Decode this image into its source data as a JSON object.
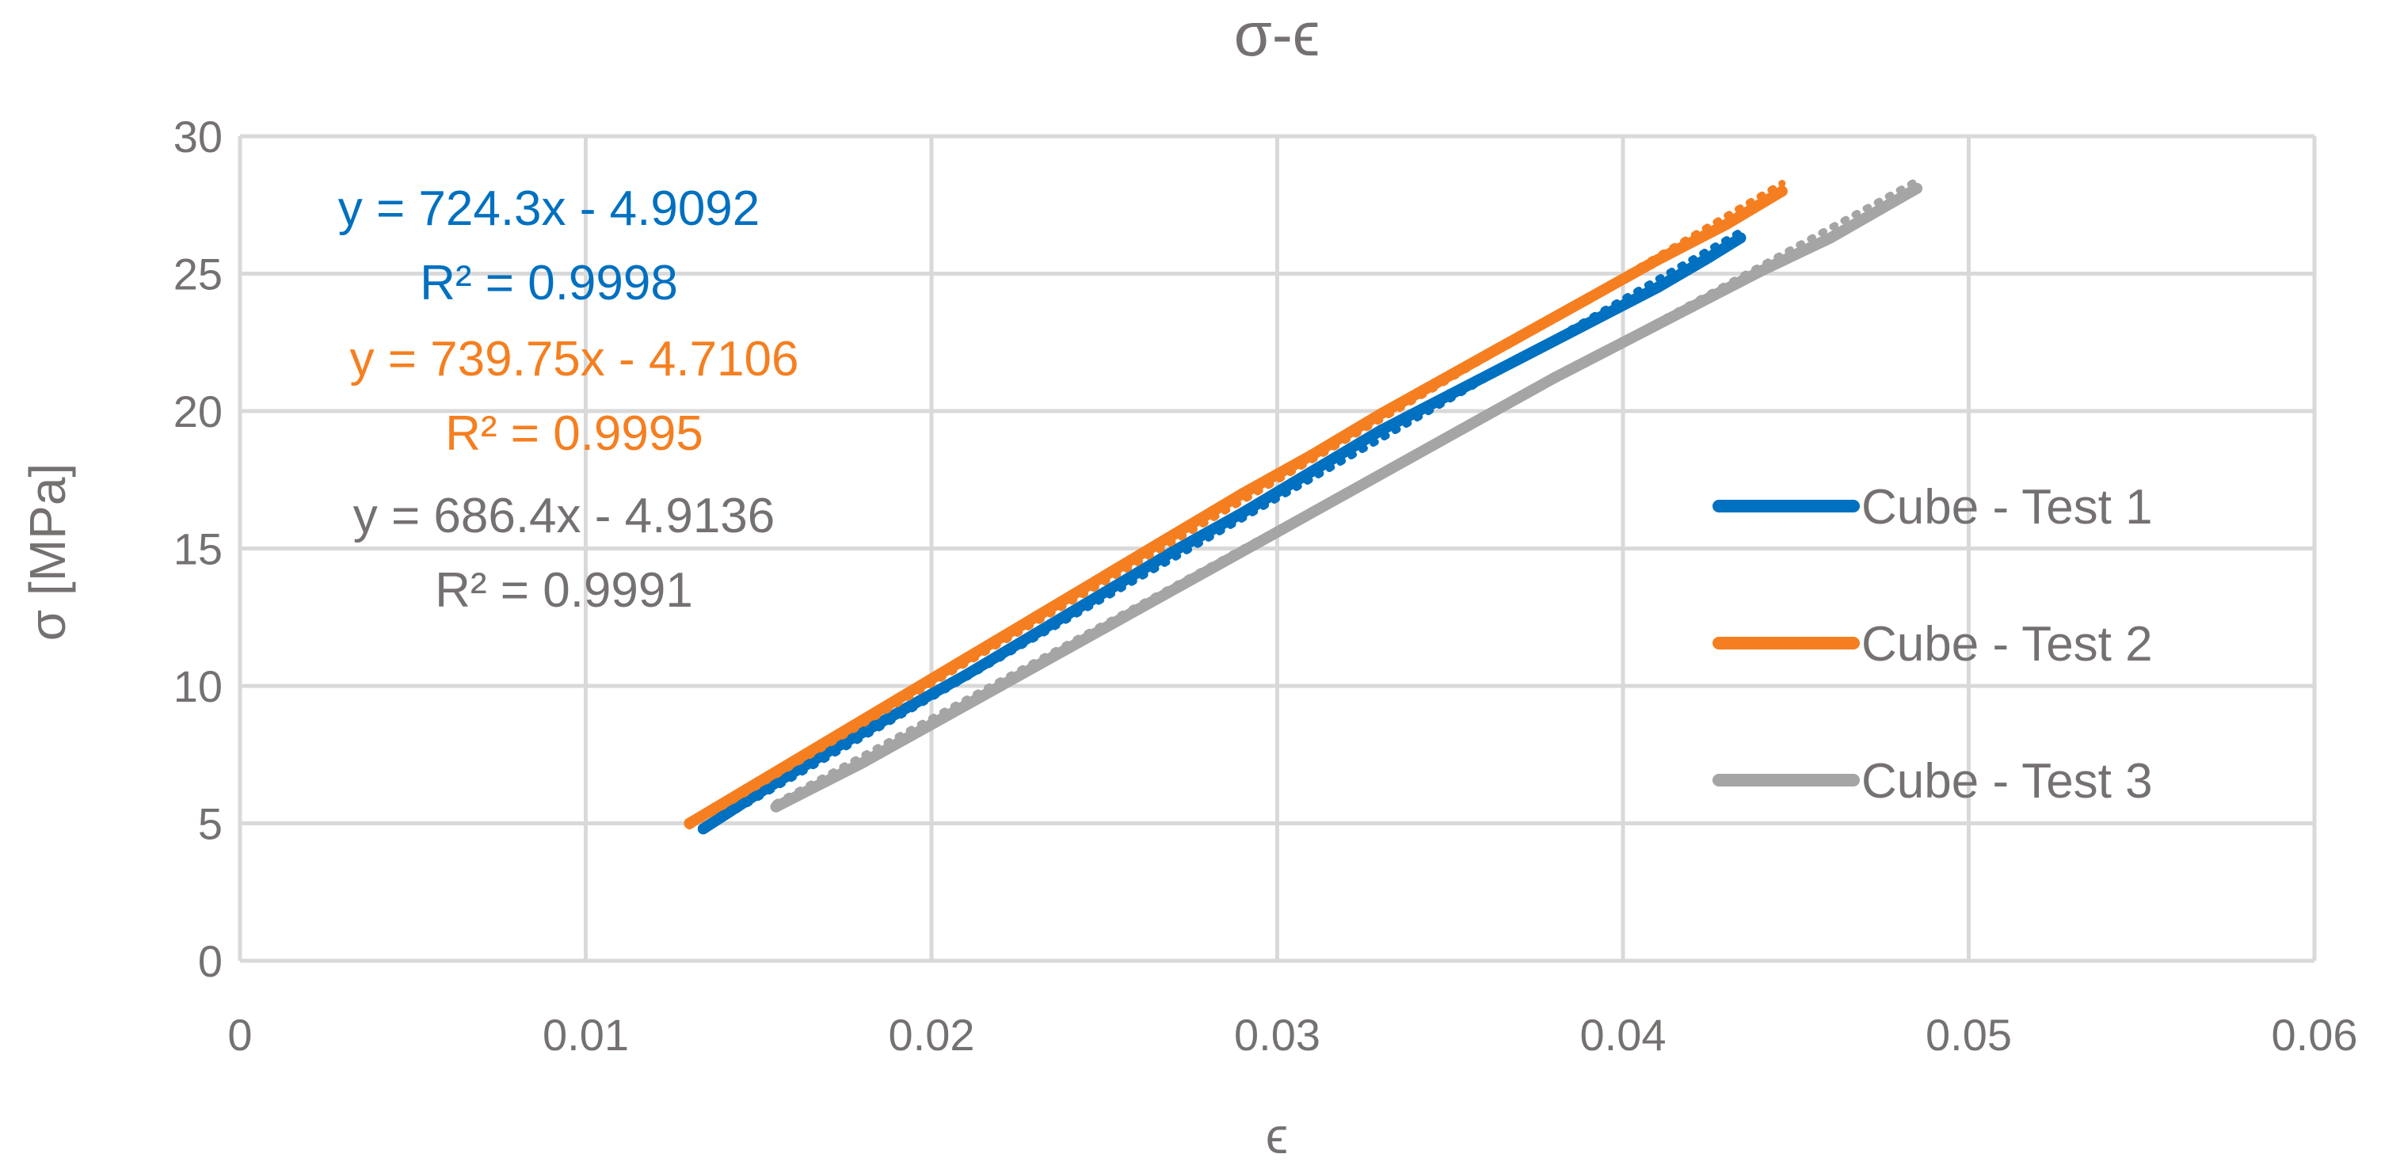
{
  "chart_data": {
    "type": "scatter",
    "title": "σ-ϵ",
    "xlabel": "ϵ",
    "ylabel": "σ [MPa]",
    "xlim": [
      0,
      0.06
    ],
    "ylim": [
      0,
      30
    ],
    "x_ticks": [
      0,
      0.01,
      0.02,
      0.03,
      0.04,
      0.05,
      0.06
    ],
    "x_tick_labels": [
      "0",
      "0.01",
      "0.02",
      "0.03",
      "0.04",
      "0.05",
      "0.06"
    ],
    "y_ticks": [
      0,
      5,
      10,
      15,
      20,
      25,
      30
    ],
    "y_tick_labels": [
      "0",
      "5",
      "10",
      "15",
      "20",
      "25",
      "30"
    ],
    "grid": true,
    "legend_position": "right",
    "series": [
      {
        "name": "Cube - Test 1",
        "color": "#0070C0",
        "x": [
          0.0134,
          0.015,
          0.017,
          0.019,
          0.021,
          0.023,
          0.025,
          0.027,
          0.029,
          0.031,
          0.033,
          0.035,
          0.037,
          0.039,
          0.041,
          0.0425,
          0.0434
        ],
        "y": [
          4.8,
          6.1,
          7.6,
          9.0,
          10.4,
          11.9,
          13.4,
          14.9,
          16.3,
          17.8,
          19.3,
          20.6,
          21.9,
          23.2,
          24.5,
          25.6,
          26.3
        ],
        "trendline": {
          "equation": "y = 724.3x - 4.9092",
          "r2": "R² = 0.9998",
          "slope": 724.3,
          "intercept": -4.9092,
          "x_range": [
            0.0134,
            0.0434
          ]
        }
      },
      {
        "name": "Cube - Test 2",
        "color": "#F57F20",
        "x": [
          0.013,
          0.015,
          0.017,
          0.019,
          0.021,
          0.023,
          0.025,
          0.027,
          0.029,
          0.031,
          0.033,
          0.035,
          0.037,
          0.039,
          0.041,
          0.043,
          0.0446
        ],
        "y": [
          5.0,
          6.5,
          8.0,
          9.5,
          11.0,
          12.5,
          14.0,
          15.5,
          17.0,
          18.4,
          19.9,
          21.3,
          22.7,
          24.1,
          25.5,
          26.8,
          28.0
        ],
        "trendline": {
          "equation": "y = 739.75x - 4.7106",
          "r2": "R² = 0.9995",
          "slope": 739.75,
          "intercept": -4.7106,
          "x_range": [
            0.013,
            0.0446
          ]
        }
      },
      {
        "name": "Cube - Test 3",
        "color": "#A5A5A5",
        "x": [
          0.0155,
          0.018,
          0.02,
          0.022,
          0.024,
          0.026,
          0.028,
          0.03,
          0.032,
          0.034,
          0.036,
          0.038,
          0.04,
          0.042,
          0.044,
          0.046,
          0.0485
        ],
        "y": [
          5.6,
          7.2,
          8.6,
          10.0,
          11.4,
          12.8,
          14.2,
          15.6,
          17.0,
          18.4,
          19.8,
          21.2,
          22.5,
          23.8,
          25.1,
          26.3,
          28.1
        ],
        "trendline": {
          "equation": "y = 686.4x - 4.9136",
          "r2": "R² = 0.9991",
          "slope": 686.4,
          "intercept": -4.9136,
          "x_range": [
            0.0155,
            0.0485
          ]
        }
      }
    ]
  }
}
